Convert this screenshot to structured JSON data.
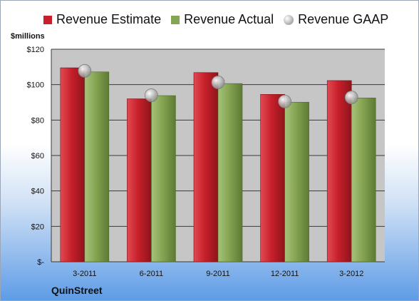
{
  "legend": {
    "estimate": "Revenue Estimate",
    "actual": "Revenue Actual",
    "gaap": "Revenue GAAP"
  },
  "units_label": "$millions",
  "company": "QuinStreet",
  "colors": {
    "estimate": "#c8202a",
    "actual": "#86a552",
    "gaap": "#b0b0b0",
    "plot_bg": "#c6c6c6"
  },
  "chart_data": {
    "type": "bar",
    "categories": [
      "3-2011",
      "6-2011",
      "9-2011",
      "12-2011",
      "3-2012"
    ],
    "series": [
      {
        "name": "Revenue Estimate",
        "values": [
          109.5,
          92.0,
          106.8,
          94.5,
          102.3
        ]
      },
      {
        "name": "Revenue Actual",
        "values": [
          107.2,
          93.8,
          100.6,
          90.1,
          92.5
        ]
      },
      {
        "name": "Revenue GAAP",
        "values": [
          107.8,
          94.0,
          101.3,
          90.5,
          92.8
        ]
      }
    ],
    "ylim": [
      0,
      120
    ],
    "yticks": [
      0,
      20,
      40,
      60,
      80,
      100,
      120
    ],
    "ytick_labels": [
      "$-",
      "$20",
      "$40",
      "$60",
      "$80",
      "$100",
      "$120"
    ],
    "grid": true,
    "legend_position": "top"
  }
}
